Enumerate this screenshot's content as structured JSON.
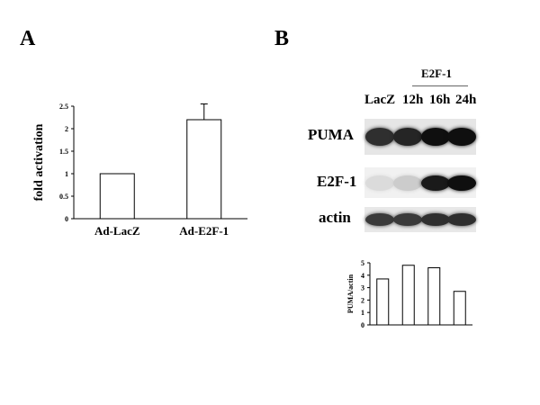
{
  "panels": {
    "a_label": "A",
    "b_label": "B"
  },
  "chart_data": [
    {
      "type": "bar",
      "categories": [
        "Ad-LacZ",
        "Ad-E2F-1"
      ],
      "values": [
        1.0,
        2.2
      ],
      "error_bars": [
        0,
        0.35
      ],
      "title": "",
      "xlabel": "",
      "ylabel": "fold activation",
      "ylim": [
        0,
        2.5
      ],
      "yticks": [
        "0",
        "0.5",
        "1",
        "1.5",
        "2",
        "2.5"
      ],
      "bar_color": "#ffffff",
      "grid": false
    },
    {
      "type": "bar",
      "categories": [
        "LacZ",
        "12h",
        "16h",
        "24h"
      ],
      "values": [
        3.7,
        4.8,
        4.6,
        2.7
      ],
      "title": "",
      "xlabel": "",
      "ylabel": "PUMA/actin",
      "ylim": [
        0,
        5
      ],
      "yticks": [
        "0",
        "1",
        "2",
        "3",
        "4",
        "5"
      ],
      "bar_color": "#ffffff",
      "grid": false
    }
  ],
  "blot": {
    "treatment_label": "E2F-1",
    "lanes": [
      "LacZ",
      "12h",
      "16h",
      "24h"
    ],
    "rows": [
      {
        "label": "PUMA",
        "intensities": [
          0.85,
          0.9,
          1.0,
          1.0
        ]
      },
      {
        "label": "E2F-1",
        "intensities": [
          0.05,
          0.12,
          0.95,
          1.0
        ]
      },
      {
        "label": "actin",
        "intensities": [
          0.8,
          0.8,
          0.85,
          0.85
        ]
      }
    ]
  }
}
